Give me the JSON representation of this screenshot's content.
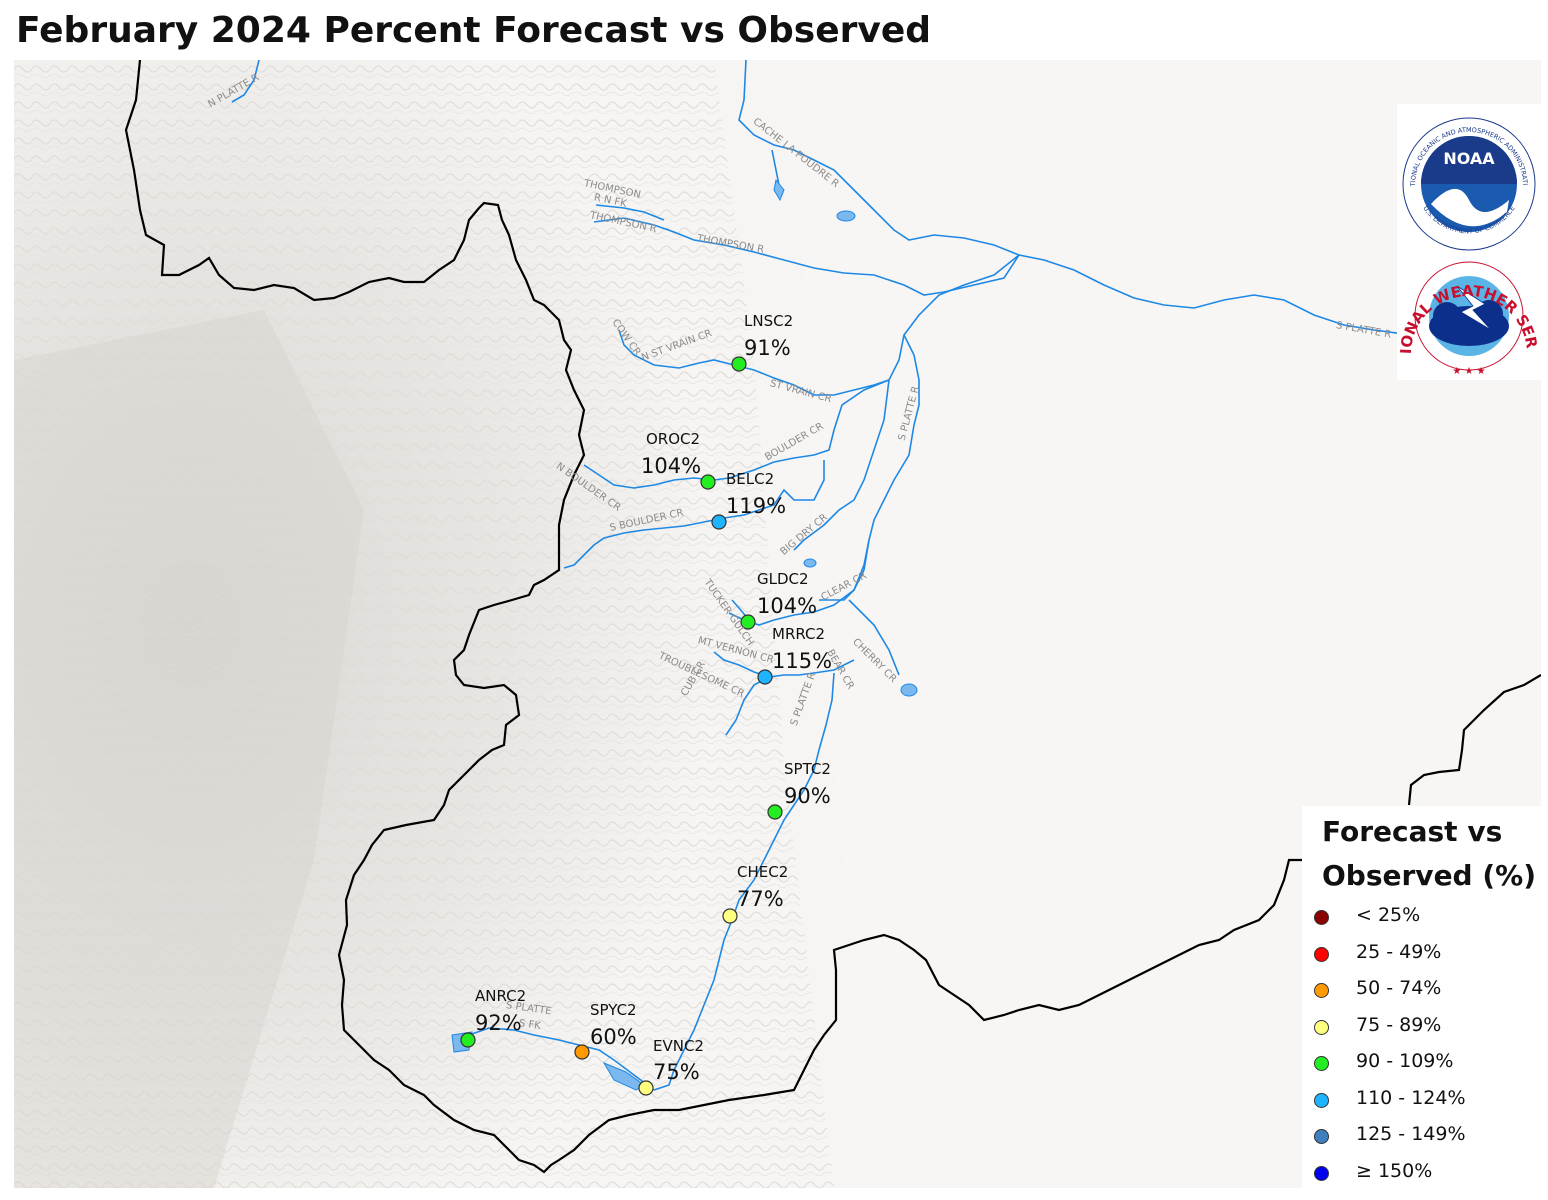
{
  "title": "February 2024 Percent Forecast vs Observed",
  "legend": {
    "title_line1": "Forecast vs",
    "title_line2": "Observed (%)",
    "items": [
      {
        "label": "< 25%",
        "color": "#8b0000"
      },
      {
        "label": "25 - 49%",
        "color": "#ff0000"
      },
      {
        "label": "50 - 74%",
        "color": "#ff9a00"
      },
      {
        "label": "75 - 89%",
        "color": "#ffff80"
      },
      {
        "label": "90 - 109%",
        "color": "#22ee22"
      },
      {
        "label": "110 - 124%",
        "color": "#1eb4ff"
      },
      {
        "label": "125 - 149%",
        "color": "#3f7fbf"
      },
      {
        "label": "≥ 150%",
        "color": "#0000ee"
      }
    ]
  },
  "stations": [
    {
      "id": "LNSC2",
      "pct": "91%",
      "color": "#22ee22"
    },
    {
      "id": "OROC2",
      "pct": "104%",
      "color": "#22ee22"
    },
    {
      "id": "BELC2",
      "pct": "119%",
      "color": "#1eb4ff"
    },
    {
      "id": "GLDC2",
      "pct": "104%",
      "color": "#22ee22"
    },
    {
      "id": "MRRC2",
      "pct": "115%",
      "color": "#1eb4ff"
    },
    {
      "id": "SPTC2",
      "pct": "90%",
      "color": "#22ee22"
    },
    {
      "id": "CHEC2",
      "pct": "77%",
      "color": "#ffff80"
    },
    {
      "id": "ANRC2",
      "pct": "92%",
      "color": "#22ee22"
    },
    {
      "id": "SPYC2",
      "pct": "60%",
      "color": "#ff9a00"
    },
    {
      "id": "EVNC2",
      "pct": "75%",
      "color": "#ffff80"
    }
  ],
  "river_labels": {
    "n_platte": "N PLATTE R",
    "cache_la_poudre": "CACHE LA POUDRE R",
    "thompson_n_fk_1": "THOMPSON",
    "thompson_n_fk_2": "R N FK",
    "thompson_r": "THOMPSON R",
    "thompson_r2": "THOMPSON R",
    "s_platte_r_east": "S PLATTE R",
    "cow_cr": "COW CR",
    "n_st_vrain": "N ST VRAIN CR",
    "st_vrain": "ST VRAIN CR",
    "boulder_cr": "BOULDER CR",
    "n_boulder": "N BOULDER CR",
    "s_boulder": "S BOULDER CR",
    "big_dry": "BIG DRY CR",
    "s_platte_north": "S PLATTE R",
    "tucker_gulch": "TUCKER GULCH",
    "clear_cr": "CLEAR CR",
    "mt_vernon": "MT VERNON CR",
    "troublesome": "TROUBLESOME CR",
    "bear_cr": "BEAR CR",
    "cherry_cr": "CHERRY CR",
    "cub_cr": "CUB CR",
    "s_platte_mid": "S PLATTE R",
    "s_platte_sw": "S PLATTE",
    "s_fk": "S FK"
  },
  "logos": {
    "noaa_text": "NOAA",
    "noaa_ring": "NATIONAL OCEANIC AND ATMOSPHERIC ADMINISTRATION",
    "noaa_ring_bottom": "U.S. DEPARTMENT OF COMMERCE",
    "nws_ring": "NATIONAL WEATHER SERVICE"
  }
}
